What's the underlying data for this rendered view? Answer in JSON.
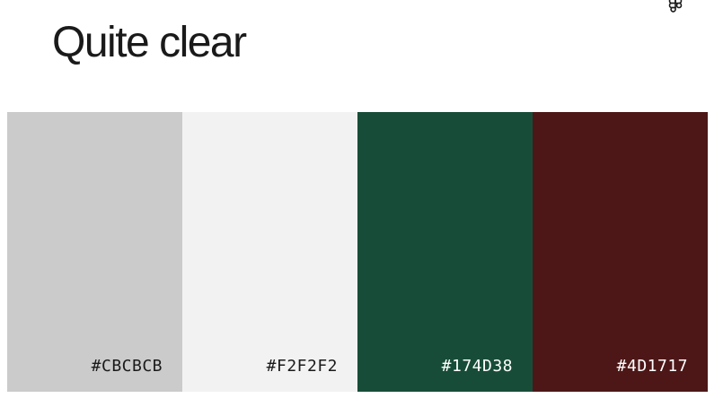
{
  "palette": {
    "title": "Quite clear",
    "icon": "figma-logo-icon",
    "swatches": [
      {
        "hex": "#CBCBCB",
        "color": "#CBCBCB",
        "text_color": "#1a1a1a"
      },
      {
        "hex": "#F2F2F2",
        "color": "#F2F2F2",
        "text_color": "#1a1a1a"
      },
      {
        "hex": "#174D38",
        "color": "#174D38",
        "text_color": "#ffffff"
      },
      {
        "hex": "#4D1717",
        "color": "#4D1717",
        "text_color": "#ffffff"
      }
    ]
  }
}
